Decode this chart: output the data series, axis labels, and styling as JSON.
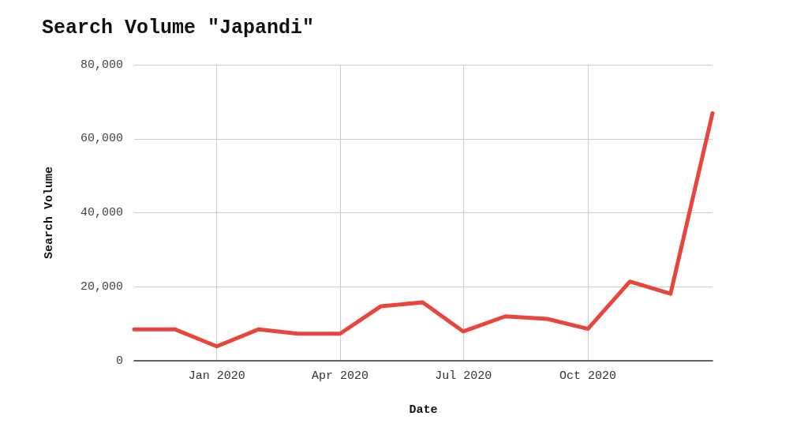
{
  "chart_data": {
    "type": "line",
    "title": "Search Volume \"Japandi\"",
    "xlabel": "Date",
    "ylabel": "Search Volume",
    "x": [
      "2019-11",
      "2019-12",
      "2020-01",
      "2020-02",
      "2020-03",
      "2020-04",
      "2020-05",
      "2020-06",
      "2020-07",
      "2020-08",
      "2020-09",
      "2020-10",
      "2020-11",
      "2020-12",
      "2021-01"
    ],
    "series": [
      {
        "color": "#e8453c",
        "values": [
          8500,
          8500,
          3900,
          8500,
          7300,
          7300,
          14700,
          15800,
          7900,
          12000,
          11300,
          8600,
          21400,
          18100,
          66900
        ]
      }
    ],
    "xlim": [
      "2019-11",
      "2021-01"
    ],
    "xticks": [
      {
        "value": "2020-01",
        "label": "Jan 2020"
      },
      {
        "value": "2020-04",
        "label": "Apr 2020"
      },
      {
        "value": "2020-07",
        "label": "Jul 2020"
      },
      {
        "value": "2020-10",
        "label": "Oct 2020"
      }
    ],
    "ylim": [
      0,
      80000
    ],
    "yticks": [
      {
        "value": 0,
        "label": "0"
      },
      {
        "value": 20000,
        "label": "20,000"
      },
      {
        "value": 40000,
        "label": "40,000"
      },
      {
        "value": 60000,
        "label": "60,000"
      },
      {
        "value": 80000,
        "label": "80,000"
      }
    ],
    "grid": true,
    "marker": "none",
    "line_style": "solid"
  }
}
